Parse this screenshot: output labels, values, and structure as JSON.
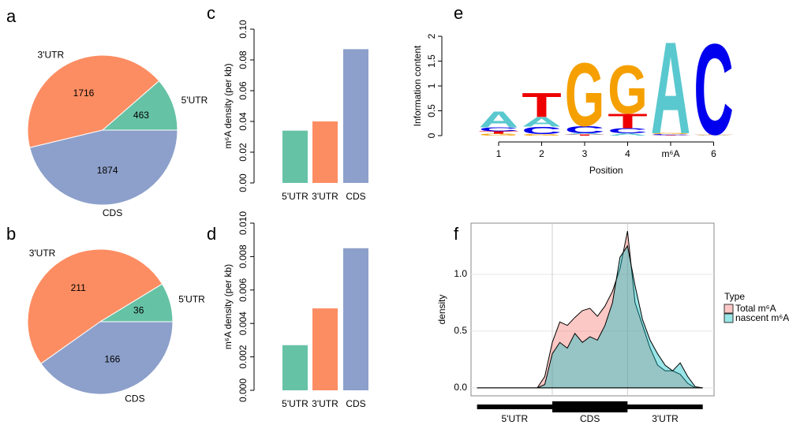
{
  "chart_data": [
    {
      "type": "pie",
      "panel": "a",
      "categories": [
        "5'UTR",
        "3'UTR",
        "CDS"
      ],
      "values": [
        463,
        1716,
        1874
      ],
      "colors": [
        "#66c2a5",
        "#fc8d62",
        "#8da0cb"
      ]
    },
    {
      "type": "pie",
      "panel": "b",
      "categories": [
        "5'UTR",
        "3'UTR",
        "CDS"
      ],
      "values": [
        36,
        211,
        166
      ],
      "colors": [
        "#66c2a5",
        "#fc8d62",
        "#8da0cb"
      ]
    },
    {
      "type": "bar",
      "panel": "c",
      "ylabel": "m⁶A density (per kb)",
      "categories": [
        "5'UTR",
        "3'UTR",
        "CDS"
      ],
      "values": [
        0.034,
        0.04,
        0.087
      ],
      "colors": [
        "#66c2a5",
        "#fc8d62",
        "#8da0cb"
      ],
      "ylim": [
        0,
        0.1
      ],
      "yticks": [
        {
          "value": 0,
          "label": "0.00"
        },
        0.02,
        0.04,
        0.06,
        0.08,
        {
          "value": 0.1,
          "label": "0.10"
        }
      ]
    },
    {
      "type": "bar",
      "panel": "d",
      "ylabel": "m⁶A density (per kb)",
      "categories": [
        "5'UTR",
        "3'UTR",
        "CDS"
      ],
      "values": [
        0.0027,
        0.0049,
        0.0085
      ],
      "colors": [
        "#66c2a5",
        "#fc8d62",
        "#8da0cb"
      ],
      "ylim": [
        0,
        0.01
      ],
      "yticks": [
        {
          "value": 0,
          "label": "0.000"
        },
        0.002,
        0.004,
        0.006,
        0.008,
        {
          "value": 0.01,
          "label": "0.010"
        }
      ]
    },
    {
      "type": "logo",
      "panel": "e",
      "ylabel": "Information content",
      "xlabel": "Position",
      "categories": [
        "1",
        "2",
        "3",
        "4",
        "m⁶A",
        "6"
      ],
      "ylim": [
        0,
        2
      ],
      "yticks": [
        0,
        0.5,
        1,
        1.5,
        2
      ],
      "series": [
        {
          "name": "A",
          "color": "#5ac8cf",
          "values": [
            0.33,
            0.2,
            0.03,
            0.05,
            1.9,
            0.01
          ]
        },
        {
          "name": "C",
          "color": "#0000ee",
          "values": [
            0.08,
            0.15,
            0.15,
            0.1,
            0.02,
            1.88
          ]
        },
        {
          "name": "G",
          "color": "#f5a000",
          "values": [
            0.04,
            0.03,
            1.3,
            1.0,
            0.02,
            0.01
          ]
        },
        {
          "name": "T",
          "color": "#ee0000",
          "values": [
            0.05,
            0.5,
            0.02,
            0.3,
            0.01,
            0.01
          ]
        }
      ]
    },
    {
      "type": "density",
      "panel": "f",
      "ylabel": "density",
      "legend_title": "Type",
      "regions": [
        "5'UTR",
        "CDS",
        "3'UTR"
      ],
      "x": [
        0,
        0.1,
        0.2,
        0.3,
        0.4,
        0.5,
        0.6,
        0.7,
        0.8,
        0.9,
        1,
        1.1,
        1.2,
        1.3,
        1.4,
        1.5,
        1.6,
        1.7,
        1.8,
        1.9,
        2,
        2.1,
        2.2,
        2.3,
        2.4,
        2.5,
        2.6,
        2.7,
        2.8,
        2.9,
        3
      ],
      "xlim": [
        -0.08,
        3.15
      ],
      "ylim": [
        -0.07,
        1.45
      ],
      "yticks": [
        {
          "value": 0,
          "label": "0.0"
        },
        {
          "value": 0.5,
          "label": "0.5"
        },
        {
          "value": 1,
          "label": "1.0"
        }
      ],
      "series": [
        {
          "name": "Total m⁶A",
          "color": "#f8766d",
          "values": [
            0,
            0,
            0,
            0,
            0,
            0,
            0,
            0,
            0,
            0.1,
            0.4,
            0.58,
            0.55,
            0.62,
            0.68,
            0.7,
            0.63,
            0.72,
            0.85,
            1.05,
            1.38,
            0.75,
            0.55,
            0.35,
            0.2,
            0.15,
            0.15,
            0.12,
            0.04,
            0,
            0
          ]
        },
        {
          "name": "nascent m⁶A",
          "color": "#00bfc4",
          "values": [
            0,
            0,
            0,
            0,
            0,
            0,
            0,
            0,
            0,
            0.03,
            0.3,
            0.4,
            0.35,
            0.48,
            0.4,
            0.45,
            0.42,
            0.55,
            0.75,
            1.15,
            1.25,
            0.9,
            0.6,
            0.42,
            0.3,
            0.2,
            0.15,
            0.22,
            0.1,
            0.01,
            0
          ]
        }
      ]
    }
  ]
}
